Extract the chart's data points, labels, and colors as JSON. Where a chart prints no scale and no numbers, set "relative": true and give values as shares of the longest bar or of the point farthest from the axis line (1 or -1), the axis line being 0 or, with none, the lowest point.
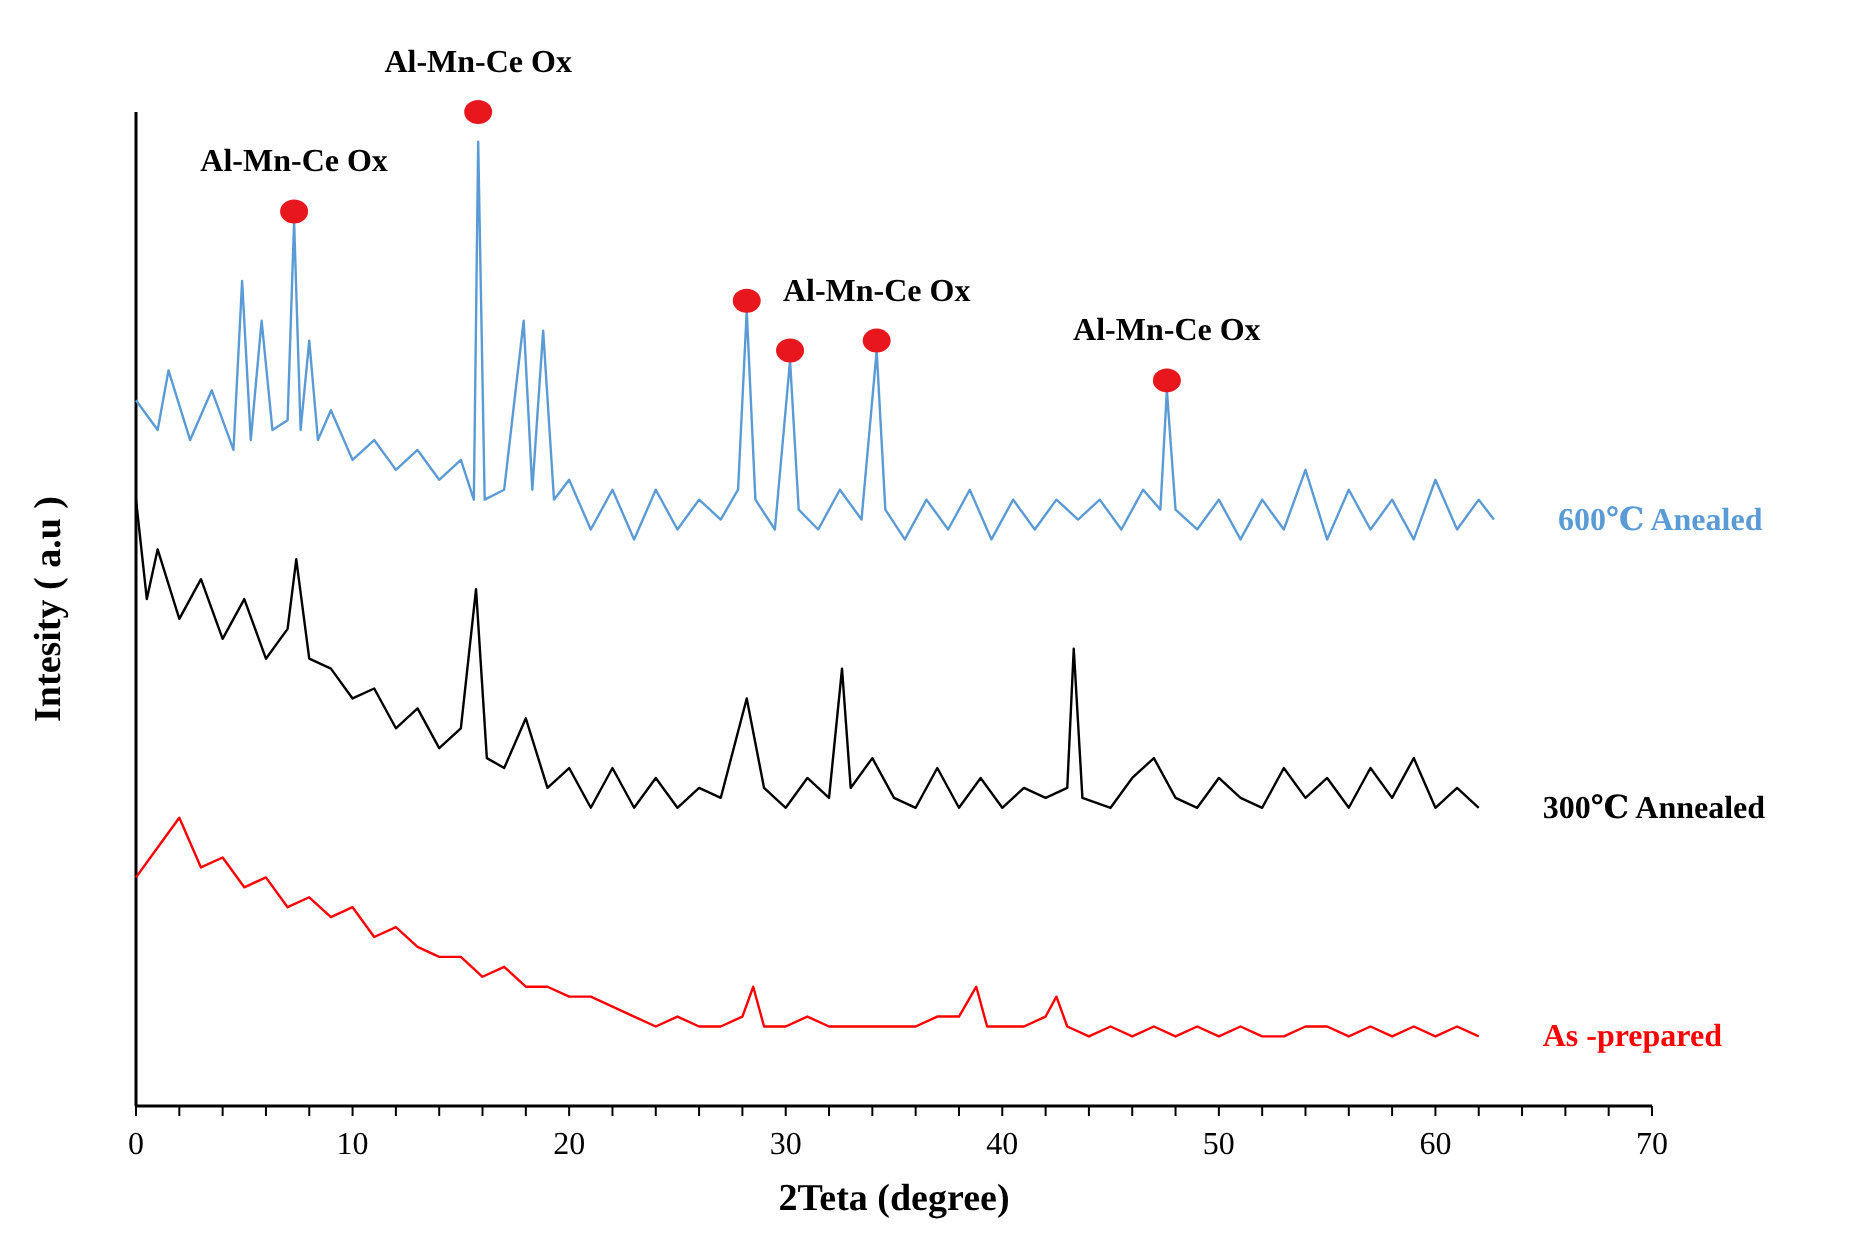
{
  "chart_data": {
    "type": "line",
    "xlabel": "2Teta (degree)",
    "ylabel": "Intesity ( a.u )",
    "relative": true,
    "xlim": [
      0,
      70
    ],
    "xticks": [
      0,
      {
        "value": 2,
        "label": null
      },
      {
        "value": 4,
        "label": null
      },
      {
        "value": 6,
        "label": null
      },
      {
        "value": 8,
        "label": null
      },
      10,
      {
        "value": 12,
        "label": null
      },
      {
        "value": 14,
        "label": null
      },
      {
        "value": 16,
        "label": null
      },
      {
        "value": 18,
        "label": null
      },
      20,
      {
        "value": 22,
        "label": null
      },
      {
        "value": 24,
        "label": null
      },
      {
        "value": 26,
        "label": null
      },
      {
        "value": 28,
        "label": null
      },
      30,
      {
        "value": 32,
        "label": null
      },
      {
        "value": 34,
        "label": null
      },
      {
        "value": 36,
        "label": null
      },
      {
        "value": 38,
        "label": null
      },
      40,
      {
        "value": 42,
        "label": null
      },
      {
        "value": 44,
        "label": null
      },
      {
        "value": 46,
        "label": null
      },
      {
        "value": 48,
        "label": null
      },
      50,
      {
        "value": 52,
        "label": null
      },
      {
        "value": 54,
        "label": null
      },
      {
        "value": 56,
        "label": null
      },
      {
        "value": 58,
        "label": null
      },
      60,
      {
        "value": 62,
        "label": null
      },
      {
        "value": 64,
        "label": null
      },
      {
        "value": 66,
        "label": null
      },
      {
        "value": 68,
        "label": null
      },
      70
    ],
    "marker": "none",
    "series": [
      {
        "name": "600℃ Anealed",
        "color": "#5b9bd5",
        "x": [
          0,
          1,
          1.5,
          2.5,
          3.5,
          4.5,
          4.9,
          5.3,
          5.8,
          6.3,
          7,
          7.3,
          7.6,
          8,
          8.4,
          9,
          10,
          11,
          12,
          13,
          14,
          15,
          15.6,
          15.8,
          16.1,
          17,
          17.9,
          18.3,
          18.8,
          19.3,
          20,
          21,
          22,
          23,
          24,
          25,
          26,
          27,
          27.8,
          28.2,
          28.6,
          29.5,
          30.2,
          30.6,
          31.5,
          32.5,
          33.5,
          34.2,
          34.6,
          35.5,
          36.5,
          37.5,
          38.5,
          39.5,
          40.5,
          41.5,
          42.5,
          43.5,
          44.5,
          45.5,
          46.5,
          47.3,
          47.6,
          48,
          49,
          50,
          51,
          52,
          53,
          54,
          55,
          56,
          57,
          58,
          59,
          60,
          61,
          62,
          62.7
        ],
        "values": [
          0.71,
          0.68,
          0.74,
          0.67,
          0.72,
          0.66,
          0.83,
          0.67,
          0.79,
          0.68,
          0.69,
          0.89,
          0.68,
          0.77,
          0.67,
          0.7,
          0.65,
          0.67,
          0.64,
          0.66,
          0.63,
          0.65,
          0.61,
          0.97,
          0.61,
          0.62,
          0.79,
          0.62,
          0.78,
          0.61,
          0.63,
          0.58,
          0.62,
          0.57,
          0.62,
          0.58,
          0.61,
          0.59,
          0.62,
          0.8,
          0.61,
          0.58,
          0.75,
          0.6,
          0.58,
          0.62,
          0.59,
          0.76,
          0.6,
          0.57,
          0.61,
          0.58,
          0.62,
          0.57,
          0.61,
          0.58,
          0.61,
          0.59,
          0.61,
          0.58,
          0.62,
          0.6,
          0.72,
          0.6,
          0.58,
          0.61,
          0.57,
          0.61,
          0.58,
          0.64,
          0.57,
          0.62,
          0.58,
          0.61,
          0.57,
          0.63,
          0.58,
          0.61,
          0.59
        ]
      },
      {
        "name": "300℃ Annealed",
        "color": "#000000",
        "x": [
          0,
          0.5,
          1,
          2,
          3,
          4,
          5,
          6,
          7,
          7.4,
          8,
          9,
          10,
          11,
          12,
          13,
          14,
          15,
          15.7,
          16.2,
          17,
          18,
          19,
          20,
          21,
          22,
          23,
          24,
          25,
          26,
          27,
          28.2,
          29,
          30,
          31,
          32,
          32.6,
          33,
          34,
          35,
          36,
          37,
          38,
          39,
          40,
          41,
          42,
          43,
          43.3,
          43.7,
          45,
          46,
          47,
          48,
          49,
          50,
          51,
          52,
          53,
          54,
          55,
          56,
          57,
          58,
          59,
          60,
          61,
          62
        ],
        "values": [
          0.61,
          0.51,
          0.56,
          0.49,
          0.53,
          0.47,
          0.51,
          0.45,
          0.48,
          0.55,
          0.45,
          0.44,
          0.41,
          0.42,
          0.38,
          0.4,
          0.36,
          0.38,
          0.52,
          0.35,
          0.34,
          0.39,
          0.32,
          0.34,
          0.3,
          0.34,
          0.3,
          0.33,
          0.3,
          0.32,
          0.31,
          0.41,
          0.32,
          0.3,
          0.33,
          0.31,
          0.44,
          0.32,
          0.35,
          0.31,
          0.3,
          0.34,
          0.3,
          0.33,
          0.3,
          0.32,
          0.31,
          0.32,
          0.46,
          0.31,
          0.3,
          0.33,
          0.35,
          0.31,
          0.3,
          0.33,
          0.31,
          0.3,
          0.34,
          0.31,
          0.33,
          0.3,
          0.34,
          0.31,
          0.35,
          0.3,
          0.32,
          0.3
        ]
      },
      {
        "name": "As -prepared",
        "color": "#ff0000",
        "x": [
          0,
          1,
          2,
          3,
          4,
          5,
          6,
          7,
          8,
          9,
          10,
          11,
          12,
          13,
          14,
          15,
          16,
          17,
          18,
          19,
          20,
          21,
          22,
          23,
          24,
          25,
          26,
          27,
          28,
          28.5,
          29,
          30,
          31,
          32,
          33,
          34,
          35,
          36,
          37,
          38,
          38.8,
          39.3,
          40,
          41,
          42,
          42.5,
          43,
          44,
          45,
          46,
          47,
          48,
          49,
          50,
          51,
          52,
          53,
          54,
          55,
          56,
          57,
          58,
          59,
          60,
          61,
          62
        ],
        "values": [
          0.23,
          0.26,
          0.29,
          0.24,
          0.25,
          0.22,
          0.23,
          0.2,
          0.21,
          0.19,
          0.2,
          0.17,
          0.18,
          0.16,
          0.15,
          0.15,
          0.13,
          0.14,
          0.12,
          0.12,
          0.11,
          0.11,
          0.1,
          0.09,
          0.08,
          0.09,
          0.08,
          0.08,
          0.09,
          0.12,
          0.08,
          0.08,
          0.09,
          0.08,
          0.08,
          0.08,
          0.08,
          0.08,
          0.09,
          0.09,
          0.12,
          0.08,
          0.08,
          0.08,
          0.09,
          0.11,
          0.08,
          0.07,
          0.08,
          0.07,
          0.08,
          0.07,
          0.08,
          0.07,
          0.08,
          0.07,
          0.07,
          0.08,
          0.08,
          0.07,
          0.08,
          0.07,
          0.08,
          0.07,
          0.08,
          0.07
        ]
      },
      {
        "type": "scatter",
        "marker": "circle",
        "color": "#e8161d",
        "x": [
          7.3,
          15.8,
          28.2,
          30.2,
          34.2,
          47.6
        ],
        "values": [
          0.9,
          1,
          0.81,
          0.76,
          0.77,
          0.73
        ]
      }
    ],
    "annotations": [
      {
        "text": "Al-Mn-Ce Ox",
        "x": 7.3,
        "y": 0.9
      },
      {
        "text": "Al-Mn-Ce Ox",
        "x": 15.8,
        "y": 1
      },
      {
        "text": "Al-Mn-Ce Ox",
        "x": 34.2,
        "y": 0.77
      },
      {
        "text": "Al-Mn-Ce Ox",
        "x": 47.6,
        "y": 0.73
      }
    ]
  }
}
